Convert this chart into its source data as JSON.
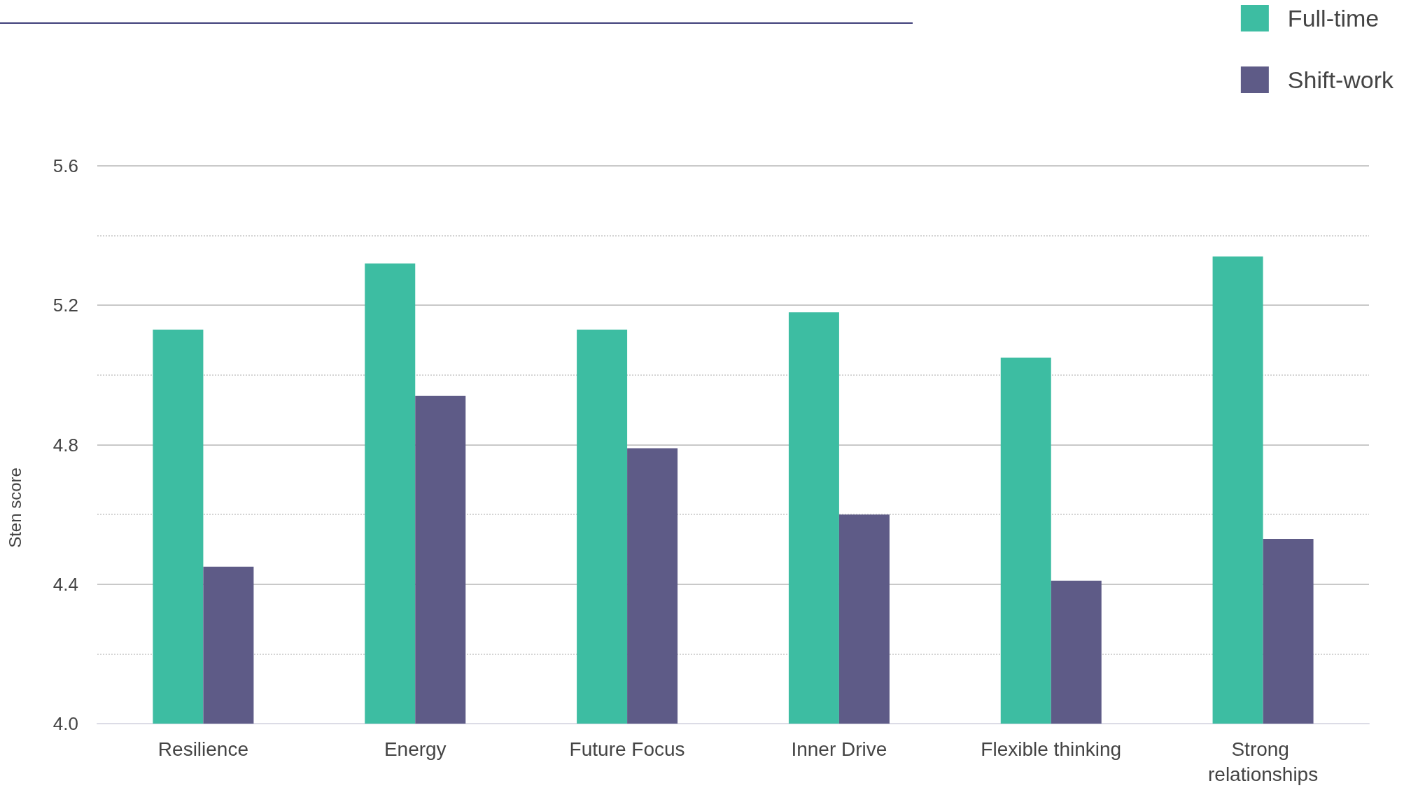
{
  "chart_data": {
    "type": "bar",
    "ylabel": "Sten score",
    "categories": [
      "Resilience",
      "Energy",
      "Future Focus",
      "Inner Drive",
      "Flexible thinking",
      "Strong relationships"
    ],
    "series": [
      {
        "name": "Full-time",
        "color": "#3dbda2",
        "values": [
          5.13,
          5.32,
          5.13,
          5.18,
          5.05,
          5.34
        ]
      },
      {
        "name": "Shift-work",
        "color": "#5e5b87",
        "values": [
          4.45,
          4.94,
          4.79,
          4.6,
          4.41,
          4.53
        ]
      }
    ],
    "ylim": [
      4,
      5.6
    ],
    "yticks": [
      {
        "value": 4,
        "label": "4.0"
      },
      {
        "value": 4.2,
        "label": null
      },
      4.4,
      {
        "value": 4.6,
        "label": null
      },
      4.8,
      {
        "value": 5,
        "label": null
      },
      5.2,
      {
        "value": 5.4,
        "label": null
      },
      5.6
    ],
    "grid": "y",
    "legend": "top right"
  }
}
